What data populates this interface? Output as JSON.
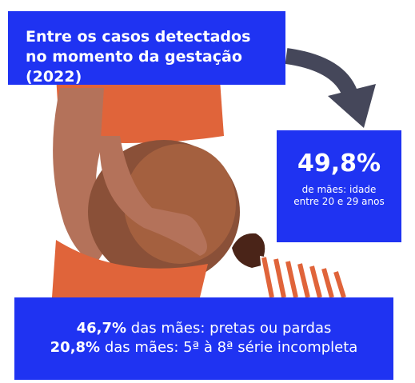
{
  "header": {
    "title": "Entre os casos detectados no momento da gestação (2022)"
  },
  "callout": {
    "value": "49,8%",
    "text": "de mães: idade entre 20 e 29 anos"
  },
  "stats": [
    {
      "highlight": "46,7%",
      "text": "das mães: pretas ou pardas"
    },
    {
      "highlight": "20,8%",
      "text": "das mães: 5ª à 8ª série incompleta"
    }
  ]
}
